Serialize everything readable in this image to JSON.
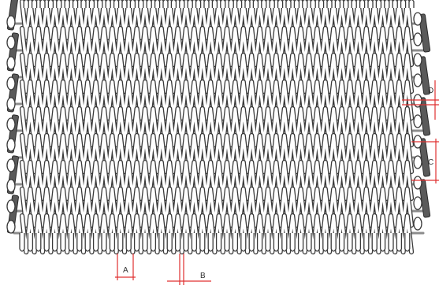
{
  "dimensions": [
    {
      "key": "a",
      "label": "A"
    },
    {
      "key": "b",
      "label": "B"
    },
    {
      "key": "c",
      "label": "C"
    },
    {
      "key": "d",
      "label": "D"
    }
  ],
  "colors": {
    "wire_fill": "#ffffff",
    "wire_stroke": "#3a3a3a",
    "rod": "#8c8c8c",
    "link": "#5a5a5a",
    "dimension": "#e03030"
  }
}
